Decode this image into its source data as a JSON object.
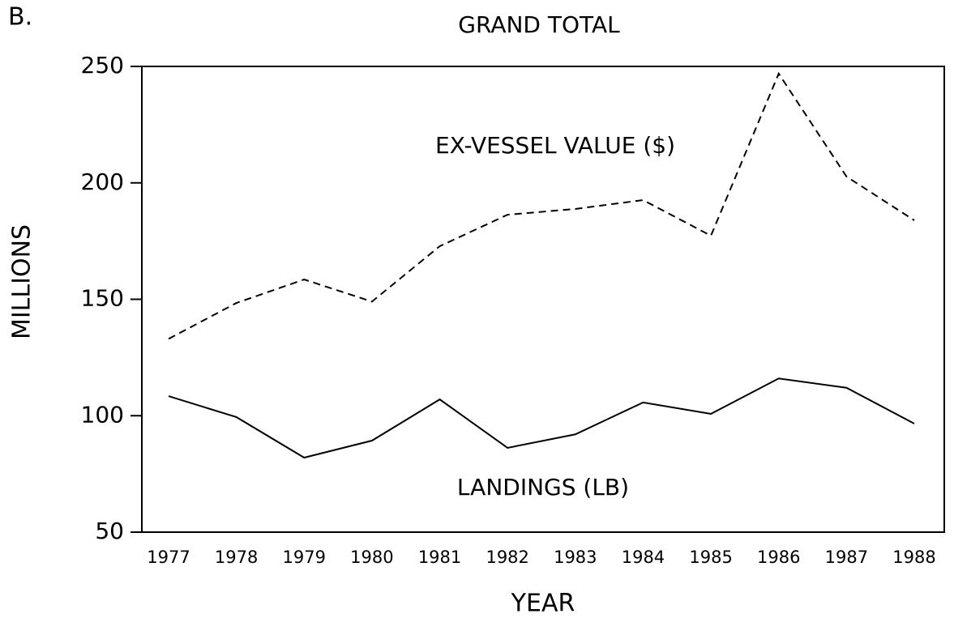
{
  "panel_label": "B.",
  "chart_data": {
    "type": "line",
    "title": "GRAND TOTAL",
    "x_label": "YEAR",
    "y_label": "MILLIONS",
    "categories": [
      "1977",
      "1978",
      "1979",
      "1980",
      "1981",
      "1982",
      "1983",
      "1984",
      "1985",
      "1986",
      "1987",
      "1988"
    ],
    "series": [
      {
        "name": "EX-VESSEL VALUE ($)",
        "color": "#000000",
        "dash": "dashed",
        "values": [
          133,
          148.4,
          158.5,
          149,
          172.8,
          186.3,
          188.8,
          192.6,
          177.3,
          246.9,
          202.7,
          183.9
        ]
      },
      {
        "name": "LANDINGS (LB)",
        "color": "#000000",
        "dash": "solid",
        "values": [
          108.4,
          99.4,
          82,
          89.3,
          107,
          86.2,
          92,
          105.7,
          100.8,
          116,
          112,
          96.6
        ]
      }
    ],
    "ylim": [
      50,
      250
    ],
    "yticks": [
      50,
      100,
      150,
      200,
      250
    ],
    "grid": false
  }
}
